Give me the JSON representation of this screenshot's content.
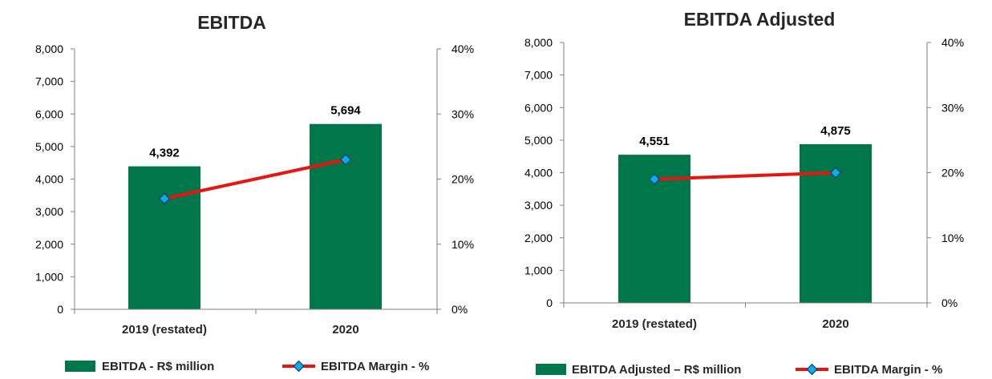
{
  "chart_data": [
    {
      "type": "bar",
      "title": "EBITDA",
      "categories": [
        "2019 (restated)",
        "2020"
      ],
      "series": [
        {
          "name": "EBITDA - R$ million",
          "values": [
            4392,
            5694
          ],
          "labels": [
            "4,392",
            "5,694"
          ],
          "axis": "left"
        },
        {
          "name": "EBITDA Margin - %",
          "type": "line",
          "values": [
            17,
            23
          ],
          "axis": "right"
        }
      ],
      "ylim": [
        0,
        8000
      ],
      "y_ticks": [
        "0",
        "1,000",
        "2,000",
        "3,000",
        "4,000",
        "5,000",
        "6,000",
        "7,000",
        "8,000"
      ],
      "y2lim": [
        0,
        40
      ],
      "y2_ticks": [
        "0%",
        "10%",
        "20%",
        "30%",
        "40%"
      ],
      "legend": "bottom",
      "grid": false
    },
    {
      "type": "bar",
      "title": "EBITDA Adjusted",
      "categories": [
        "2019 (restated)",
        "2020"
      ],
      "series": [
        {
          "name": "EBITDA Adjusted  – R$ million",
          "values": [
            4551,
            4875
          ],
          "labels": [
            "4,551",
            "4,875"
          ],
          "axis": "left"
        },
        {
          "name": "EBITDA Margin - %",
          "type": "line",
          "values": [
            19,
            20
          ],
          "axis": "right"
        }
      ],
      "ylim": [
        0,
        8000
      ],
      "y_ticks": [
        "0",
        "1,000",
        "2,000",
        "3,000",
        "4,000",
        "5,000",
        "6,000",
        "7,000",
        "8,000"
      ],
      "y2lim": [
        0,
        40
      ],
      "y2_ticks": [
        "0%",
        "10%",
        "20%",
        "30%",
        "40%"
      ],
      "legend": "bottom",
      "grid": false
    }
  ],
  "colors": {
    "bar": "#00774A",
    "line": "#E8150F",
    "marker": "#00B0F0",
    "axis": "#808080"
  }
}
